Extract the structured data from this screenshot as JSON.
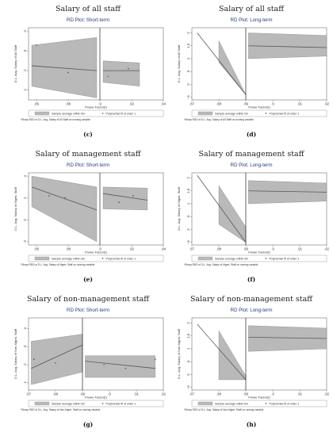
{
  "figure": {
    "legend_bin": "Sample average within bin",
    "legend_fit": "Polynomial fit of order 1",
    "colors": {
      "band": "#b9b9b9",
      "line": "#555555",
      "cutoff": "#000000",
      "subtitle": "#1f3f7a",
      "dots": "#666666"
    }
  },
  "chart_data": [
    {
      "type": "line",
      "panel_label": "(c)",
      "title": "Salary of all staff",
      "subtitle": "RD Plot: Short-term",
      "xlabel": "Power Factor(t)",
      "ylabel": "D.L. Avg. Salary of All Staff",
      "note": "*Sharp RDD of D.L. Avg. Salary of All Staff on running variable",
      "xlim": [
        0.855,
        0.94
      ],
      "ylim": [
        0.05,
        0.42
      ],
      "cutoff": 0.9,
      "xticks": [
        0.86,
        0.88,
        0.9,
        0.92,
        0.94
      ],
      "xtick_labels": [
        ".86",
        ".88",
        ".9",
        ".92",
        ".94"
      ],
      "yticks": [
        0.1,
        0.2,
        0.3,
        0.4
      ],
      "ytick_labels": [
        ".1",
        ".2",
        ".3",
        ".4"
      ],
      "left": {
        "x": [
          0.857,
          0.898
        ],
        "fit": [
          0.225,
          0.2
        ],
        "lo": [
          0.12,
          0.06
        ],
        "hi": [
          0.33,
          0.37
        ]
      },
      "right": {
        "x": [
          0.902,
          0.925
        ],
        "fit": [
          0.2,
          0.2
        ],
        "lo": [
          0.14,
          0.12
        ],
        "hi": [
          0.25,
          0.24
        ]
      },
      "points": [
        {
          "x": 0.86,
          "y": 0.33
        },
        {
          "x": 0.88,
          "y": 0.19
        },
        {
          "x": 0.905,
          "y": 0.17
        },
        {
          "x": 0.918,
          "y": 0.21
        }
      ]
    },
    {
      "type": "line",
      "panel_label": "(d)",
      "title": "Salary of all staff",
      "subtitle": "RD Plot: Long-term",
      "xlabel": "Power Factor(t)",
      "ylabel": "D.L. Avg. Salary of All Staff",
      "note": "*Sharp RDD of D.L. Avg. Salary of All Staff on running variable",
      "xlim": [
        0.87,
        0.92
      ],
      "ylim": [
        -0.6,
        2.2
      ],
      "cutoff": 0.89,
      "xticks": [
        0.87,
        0.88,
        0.89,
        0.9,
        0.91,
        0.92
      ],
      "xtick_labels": [
        ".87",
        ".88",
        ".89",
        ".9",
        ".91",
        ".92"
      ],
      "yticks": [
        -0.5,
        0,
        0.5,
        1,
        1.5,
        2
      ],
      "ytick_labels": [
        "-.5",
        "0",
        ".5",
        "1",
        "1.5",
        "2"
      ],
      "left": {
        "x": [
          0.872,
          0.89
        ],
        "fit": [
          2.0,
          -0.4
        ],
        "lo": [
          0.85,
          -0.4
        ],
        "hi": [
          1.7,
          -0.4
        ]
      },
      "right": {
        "x": [
          0.891,
          0.92
        ],
        "fit": [
          1.5,
          1.43
        ],
        "lo": [
          1.0,
          1.1
        ],
        "hi": [
          2.0,
          1.9
        ]
      },
      "band_left_from": 0.88,
      "points": []
    },
    {
      "type": "line",
      "panel_label": "(e)",
      "title": "Salary of management staff",
      "subtitle": "RD Plot: Short-term",
      "xlabel": "Power Factor(t)",
      "ylabel": "D.L. Avg. Salary of Mgmt. Staff",
      "note": "*Sharp RDD of D.L. Avg. Salary of Mgmt. Staff on running variable",
      "xlim": [
        0.855,
        0.94
      ],
      "ylim": [
        -2.3,
        4.3
      ],
      "cutoff": 0.9,
      "xticks": [
        0.86,
        0.88,
        0.9,
        0.92,
        0.94
      ],
      "xtick_labels": [
        ".86",
        ".88",
        ".9",
        ".92",
        ".94"
      ],
      "yticks": [
        -2,
        0,
        2,
        4
      ],
      "ytick_labels": [
        "-2",
        "0",
        "2",
        "4"
      ],
      "left": {
        "x": [
          0.857,
          0.898
        ],
        "fit": [
          3.0,
          0.9
        ],
        "lo": [
          1.2,
          -2.0
        ],
        "hi": [
          4.0,
          3.0
        ]
      },
      "right": {
        "x": [
          0.902,
          0.93
        ],
        "fit": [
          2.4,
          1.8
        ],
        "lo": [
          1.0,
          0.9
        ],
        "hi": [
          3.0,
          2.9
        ]
      },
      "points": [
        {
          "x": 0.868,
          "y": 2.2
        },
        {
          "x": 0.878,
          "y": 2.0
        },
        {
          "x": 0.912,
          "y": 1.6
        },
        {
          "x": 0.921,
          "y": 2.2
        }
      ]
    },
    {
      "type": "line",
      "panel_label": "(f)",
      "title": "Salary of management staff",
      "subtitle": "RD Plot: Long-term",
      "xlabel": "Power Factor(t)",
      "ylabel": "D.L. Avg. Salary of Mgmt. Staff",
      "note": "*Sharp RDD of D.L. Avg. Salary of Mgmt. Staff on running variable",
      "xlim": [
        0.87,
        0.92
      ],
      "ylim": [
        -0.6,
        2.2
      ],
      "cutoff": 0.89,
      "xticks": [
        0.87,
        0.88,
        0.89,
        0.9,
        0.91,
        0.92
      ],
      "xtick_labels": [
        ".87",
        ".88",
        ".89",
        ".9",
        ".91",
        ".92"
      ],
      "yticks": [
        -0.5,
        0,
        0.5,
        1,
        1.5,
        2
      ],
      "ytick_labels": [
        "-.5",
        "0",
        ".5",
        "1",
        "1.5",
        "2"
      ],
      "left": {
        "x": [
          0.872,
          0.89
        ],
        "fit": [
          2.1,
          -0.5
        ],
        "lo": [
          0.2,
          -0.5
        ],
        "hi": [
          1.7,
          0.1
        ]
      },
      "right": {
        "x": [
          0.891,
          0.92
        ],
        "fit": [
          1.5,
          1.45
        ],
        "lo": [
          1.0,
          1.1
        ],
        "hi": [
          1.9,
          1.8
        ]
      },
      "band_left_from": 0.88,
      "points": []
    },
    {
      "type": "line",
      "panel_label": "(g)",
      "title": "Salary of non-management staff",
      "subtitle": "RD Plot: Short-term",
      "xlabel": "Power Factor(t)",
      "ylabel": "D.L. Avg. Salary of Non-Mgmt. Staff",
      "note": "*Sharp RDD of D.L. Avg. Salary of Non-Mgmt. Staff on running variable",
      "xlim": [
        0.87,
        0.92
      ],
      "ylim": [
        0.06,
        0.46
      ],
      "cutoff": 0.89,
      "xticks": [
        0.87,
        0.88,
        0.89,
        0.9,
        0.91,
        0.92
      ],
      "xtick_labels": [
        ".87",
        ".88",
        ".89",
        ".9",
        ".91",
        ".92"
      ],
      "yticks": [
        0.1,
        0.2,
        0.3,
        0.4
      ],
      "ytick_labels": [
        ".1",
        ".2",
        ".3",
        ".4"
      ],
      "left": {
        "x": [
          0.871,
          0.89
        ],
        "fit": [
          0.18,
          0.31
        ],
        "lo": [
          0.09,
          0.16
        ],
        "hi": [
          0.33,
          0.37
        ]
      },
      "right": {
        "x": [
          0.891,
          0.917
        ],
        "fit": [
          0.22,
          0.18
        ],
        "lo": [
          0.13,
          0.13
        ],
        "hi": [
          0.25,
          0.25
        ]
      },
      "points": [
        {
          "x": 0.872,
          "y": 0.23
        },
        {
          "x": 0.88,
          "y": 0.21
        },
        {
          "x": 0.898,
          "y": 0.2
        },
        {
          "x": 0.906,
          "y": 0.18
        },
        {
          "x": 0.917,
          "y": 0.23
        }
      ]
    },
    {
      "type": "line",
      "panel_label": "(h)",
      "title": "Salary of non-management staff",
      "subtitle": "RD Plot: Long-term",
      "xlabel": "Power Factor(t)",
      "ylabel": "D.L. Avg. Salary of Non-Mgmt. Staff",
      "note": "*Sharp RDD of D.L. Avg. Salary of Non-Mgmt. Staff on running variable",
      "xlim": [
        0.87,
        0.92
      ],
      "ylim": [
        -0.6,
        2.2
      ],
      "cutoff": 0.89,
      "xticks": [
        0.87,
        0.88,
        0.89,
        0.9,
        0.91,
        0.92
      ],
      "xtick_labels": [
        ".87",
        ".88",
        ".89",
        ".9",
        ".91",
        ".92"
      ],
      "yticks": [
        -0.5,
        0,
        0.5,
        1,
        1.5,
        2
      ],
      "ytick_labels": [
        "-.5",
        "0",
        ".5",
        "1",
        "1.5",
        "2"
      ],
      "left": {
        "x": [
          0.872,
          0.89
        ],
        "fit": [
          1.95,
          -0.2
        ],
        "lo": [
          -0.2,
          -0.2
        ],
        "hi": [
          1.7,
          -0.05
        ]
      },
      "right": {
        "x": [
          0.891,
          0.92
        ],
        "fit": [
          1.45,
          1.4
        ],
        "lo": [
          0.9,
          1.0
        ],
        "hi": [
          1.9,
          1.8
        ]
      },
      "band_left_from": 0.88,
      "points": []
    }
  ]
}
